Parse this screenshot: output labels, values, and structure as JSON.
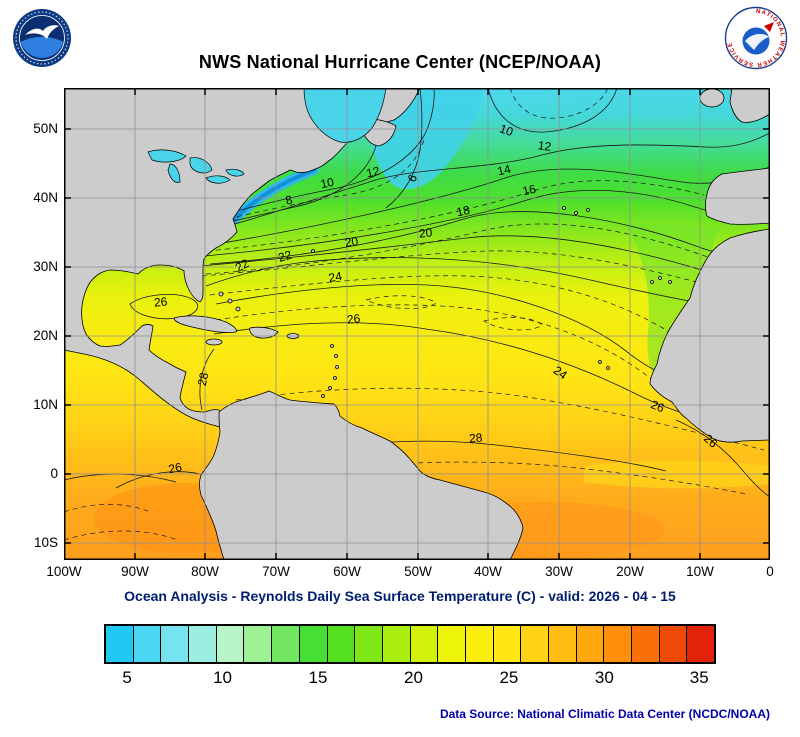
{
  "header": {
    "title": "NWS National Hurricane Center (NCEP/NOAA)",
    "nws_ring_text": "NATIONAL WEATHER SERVICE"
  },
  "map": {
    "lat_labels": [
      "50N",
      "40N",
      "30N",
      "20N",
      "10N",
      "0",
      "10S"
    ],
    "lon_labels": [
      "100W",
      "90W",
      "80W",
      "70W",
      "60W",
      "50W",
      "40W",
      "30W",
      "20W",
      "10W",
      "0"
    ],
    "contour_labels": [
      {
        "value": "8"
      },
      {
        "value": "10"
      },
      {
        "value": "12"
      },
      {
        "value": "6"
      },
      {
        "value": "10"
      },
      {
        "value": "12"
      },
      {
        "value": "14"
      },
      {
        "value": "16"
      },
      {
        "value": "18"
      },
      {
        "value": "20"
      },
      {
        "value": "20"
      },
      {
        "value": "22"
      },
      {
        "value": "22"
      },
      {
        "value": "24"
      },
      {
        "value": "26"
      },
      {
        "value": "26"
      },
      {
        "value": "28"
      },
      {
        "value": "24"
      },
      {
        "value": "26"
      },
      {
        "value": "26"
      },
      {
        "value": "28"
      },
      {
        "value": "26"
      }
    ]
  },
  "caption": {
    "subtitle": "Ocean Analysis - Reynolds Daily Sea Surface Temperature (C) - valid: 2026 - 04 - 15"
  },
  "colorbar": {
    "ticks": [
      "5",
      "10",
      "15",
      "20",
      "25",
      "30",
      "35"
    ],
    "colors": [
      "#1fc9f2",
      "#49d7f2",
      "#75e4f0",
      "#9ceee3",
      "#b7f5c9",
      "#9ff195",
      "#71e762",
      "#47de36",
      "#54e01e",
      "#80e716",
      "#abee10",
      "#d3f20b",
      "#eef408",
      "#faef0c",
      "#ffe713",
      "#ffd313",
      "#ffbd10",
      "#ffa70d",
      "#ff8f09",
      "#fb6f07",
      "#ef4a08",
      "#e22309"
    ]
  },
  "footer": {
    "data_source": "Data Source: National Climatic Data Center (NCDC/NOAA)"
  }
}
